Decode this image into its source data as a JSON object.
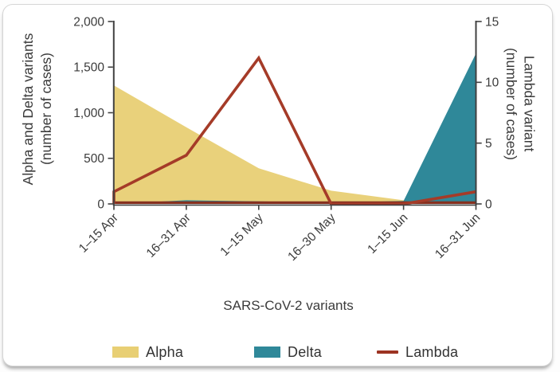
{
  "chart_data": {
    "type": "area",
    "categories": [
      "1–15 Apr",
      "16–31 Apr",
      "1–15 May",
      "16–30 May",
      "1–15 Jun",
      "16–31 Jun"
    ],
    "series": [
      {
        "name": "Alpha",
        "type": "area",
        "axis": "left",
        "color": "#e9d17b",
        "values": [
          1300,
          840,
          390,
          145,
          40,
          15
        ]
      },
      {
        "name": "Delta",
        "type": "area",
        "axis": "left",
        "color": "#2f8899",
        "values": [
          0,
          40,
          28,
          12,
          32,
          1650
        ]
      },
      {
        "name": "Lambda",
        "type": "line",
        "axis": "right",
        "color": "#a53b28",
        "values": [
          1,
          4,
          12,
          0,
          0,
          1
        ]
      }
    ],
    "left_axis": {
      "label_line1": "Alpha and Delta variants",
      "label_line2": "(number of cases)",
      "ticks": [
        0,
        500,
        1000,
        1500,
        2000
      ],
      "tick_labels": [
        "0",
        "500",
        "1,000",
        "1,500",
        "2,000"
      ],
      "max": 2000
    },
    "right_axis": {
      "label_line1": "Lambda variant",
      "label_line2": "(number of cases)",
      "ticks": [
        0,
        5,
        10,
        15
      ],
      "tick_labels": [
        "0",
        "5",
        "10",
        "15"
      ],
      "max": 15
    },
    "xlabel": "SARS-CoV-2 variants",
    "grid": false,
    "legend_position": "bottom",
    "axis_color": "#414141",
    "baseline_color": "#86301f"
  },
  "legend": {
    "items": [
      {
        "label": "Alpha",
        "swatch": "rect",
        "color": "#e8cf74"
      },
      {
        "label": "Delta",
        "swatch": "rect",
        "color": "#2f8899"
      },
      {
        "label": "Lambda",
        "swatch": "line",
        "color": "#9c3322"
      }
    ]
  }
}
